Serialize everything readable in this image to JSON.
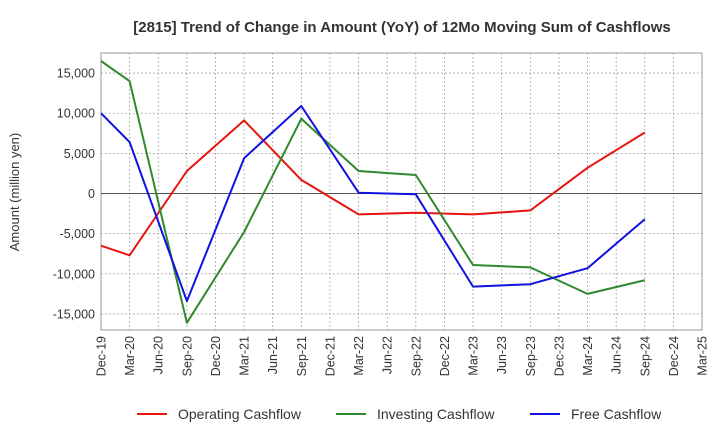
{
  "chart_data": {
    "type": "line",
    "title": "[2815]  Trend of Change in Amount (YoY) of 12Mo Moving Sum of Cashflows",
    "xlabel": "",
    "ylabel": "Amount (million yen)",
    "ylim": [
      -17000,
      17500
    ],
    "yticks": [
      -15000,
      -10000,
      -5000,
      0,
      5000,
      10000,
      15000
    ],
    "ytick_labels": [
      "-15,000",
      "-10,000",
      "-5,000",
      "0",
      "5,000",
      "10,000",
      "15,000"
    ],
    "grid": true,
    "legend_position": "bottom",
    "categories": [
      "Dec-19",
      "Mar-20",
      "Jun-20",
      "Sep-20",
      "Dec-20",
      "Mar-21",
      "Jun-21",
      "Sep-21",
      "Dec-21",
      "Mar-22",
      "Jun-22",
      "Sep-22",
      "Dec-22",
      "Mar-23",
      "Jun-23",
      "Sep-23",
      "Dec-23",
      "Mar-24",
      "Jun-24",
      "Sep-24",
      "Dec-24",
      "Mar-25"
    ],
    "series": [
      {
        "name": "Operating Cashflow",
        "color": "#e8140f",
        "values": [
          -6500,
          -7700,
          null,
          2800,
          null,
          9100,
          null,
          1700,
          null,
          -2600,
          null,
          -2400,
          null,
          -2600,
          null,
          -2100,
          null,
          3200,
          null,
          7600,
          null,
          null
        ]
      },
      {
        "name": "Investing Cashflow",
        "color": "#2f8a2f",
        "values": [
          16500,
          14000,
          null,
          -16100,
          null,
          -4800,
          null,
          9300,
          null,
          2800,
          null,
          2300,
          null,
          -8900,
          null,
          -9200,
          null,
          -12500,
          null,
          -10800,
          null,
          null
        ]
      },
      {
        "name": "Free Cashflow",
        "color": "#1212e0",
        "values": [
          10000,
          6400,
          null,
          -13400,
          null,
          4400,
          null,
          10900,
          null,
          100,
          null,
          -100,
          null,
          -11600,
          null,
          -11300,
          null,
          -9300,
          null,
          -3200,
          null,
          null
        ]
      }
    ]
  }
}
